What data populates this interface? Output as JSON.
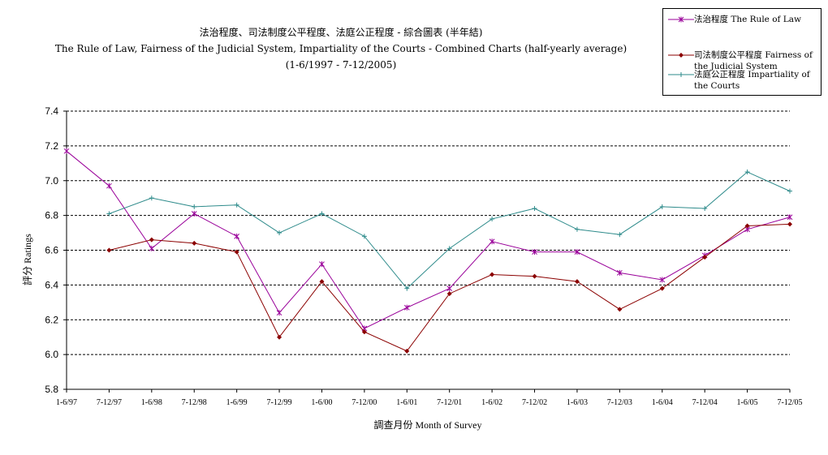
{
  "title": {
    "line1": "法治程度、司法制度公平程度、法庭公正程度 - 綜合圖表 (半年結)",
    "line2": "The Rule of Law, Fairness of the Judicial System, Impartiality of the Courts - Combined Charts (half-yearly average)",
    "line3": "(1-6/1997 - 7-12/2005)"
  },
  "legend": {
    "items": [
      {
        "text": "法治程度 The Rule of Law"
      },
      {
        "text": "司法制度公平程度 Fairness of the Judicial System"
      },
      {
        "text": "法庭公正程度 Impartiality of the Courts"
      }
    ]
  },
  "chart_data": {
    "type": "line",
    "title": "法治程度、司法制度公平程度、法庭公正程度 - 綜合圖表 (半年結)",
    "xlabel": "調查月份 Month of Survey",
    "ylabel": "評分 Ratings",
    "ylim": [
      5.8,
      7.4
    ],
    "yticks": [
      "5.8",
      "6.0",
      "6.2",
      "6.4",
      "6.6",
      "6.8",
      "7.0",
      "7.2",
      "7.4"
    ],
    "grid": "horizontal dashed",
    "legend_position": "top-right",
    "categories": [
      "1-6/97",
      "7-12/97",
      "1-6/98",
      "7-12/98",
      "1-6/99",
      "7-12/99",
      "1-6/00",
      "7-12/00",
      "1-6/01",
      "7-12/01",
      "1-6/02",
      "7-12/02",
      "1-6/03",
      "7-12/03",
      "1-6/04",
      "7-12/04",
      "1-6/05",
      "7-12/05"
    ],
    "series": [
      {
        "name": "法治程度 The Rule of Law",
        "color": "#990099",
        "marker": "asterisk",
        "values": [
          7.17,
          6.97,
          6.61,
          6.81,
          6.68,
          6.24,
          6.52,
          6.15,
          6.27,
          6.38,
          6.65,
          6.59,
          6.59,
          6.47,
          6.43,
          6.57,
          6.72,
          6.79
        ]
      },
      {
        "name": "司法制度公平程度 Fairness of the Judicial System",
        "color": "#8b0000",
        "marker": "diamond",
        "values": [
          null,
          6.6,
          6.66,
          6.64,
          6.59,
          6.1,
          6.42,
          6.13,
          6.02,
          6.35,
          6.46,
          6.45,
          6.42,
          6.26,
          6.38,
          6.56,
          6.74,
          6.75
        ]
      },
      {
        "name": "法庭公正程度 Impartiality of the Courts",
        "color": "#2e8b8b",
        "marker": "plus",
        "values": [
          null,
          6.81,
          6.9,
          6.85,
          6.86,
          6.7,
          6.81,
          6.68,
          6.38,
          6.61,
          6.78,
          6.84,
          6.72,
          6.69,
          6.85,
          6.84,
          7.05,
          6.94
        ]
      }
    ]
  }
}
